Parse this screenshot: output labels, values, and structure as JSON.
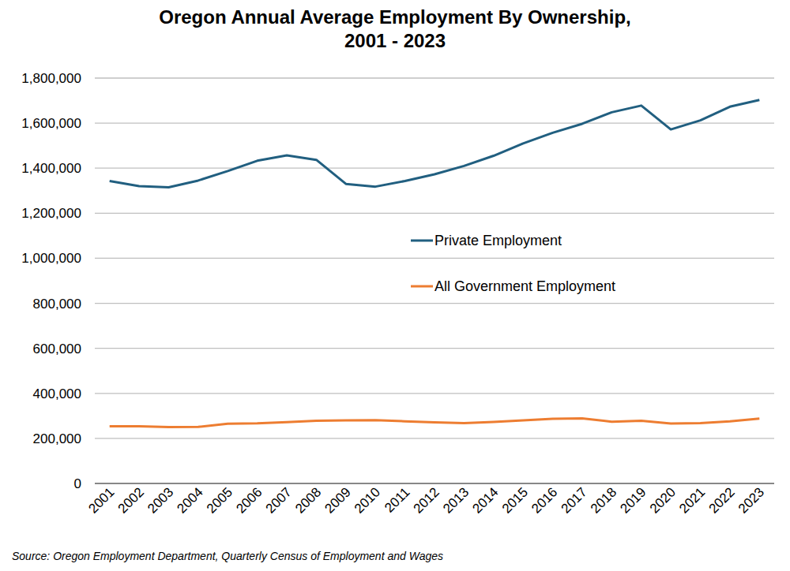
{
  "chart_data": {
    "type": "line",
    "title": "Oregon Annual Average Employment By Ownership, 2001 - 2023",
    "source": "Source: Oregon Employment Department, Quarterly Census of Employment and Wages",
    "categories": [
      "2001",
      "2002",
      "2003",
      "2004",
      "2005",
      "2006",
      "2007",
      "2008",
      "2009",
      "2010",
      "2011",
      "2012",
      "2013",
      "2014",
      "2015",
      "2016",
      "2017",
      "2018",
      "2019",
      "2020",
      "2021",
      "2022",
      "2023"
    ],
    "series": [
      {
        "name": "Private Employment",
        "color": "#215f80",
        "values": [
          1343000,
          1320000,
          1315000,
          1345000,
          1387000,
          1433000,
          1457000,
          1437000,
          1330000,
          1318000,
          1343000,
          1373000,
          1410000,
          1455000,
          1510000,
          1557000,
          1597000,
          1648000,
          1678000,
          1572000,
          1612000,
          1673000,
          1703000
        ]
      },
      {
        "name": "All Government Employment",
        "color": "#ed7d31",
        "values": [
          254000,
          254000,
          250000,
          251000,
          265000,
          267000,
          272000,
          278000,
          280000,
          281000,
          276000,
          271000,
          268000,
          273000,
          280000,
          287000,
          289000,
          274000,
          278000,
          266000,
          268000,
          276000,
          288000
        ]
      }
    ],
    "ylim": [
      0,
      1800000
    ],
    "yticks": [
      0,
      {
        "value": 200000,
        "label": "200,000"
      },
      {
        "value": 400000,
        "label": "400,000"
      },
      {
        "value": 600000,
        "label": "600,000"
      },
      {
        "value": 800000,
        "label": "800,000"
      },
      {
        "value": 1000000,
        "label": "1,000,000"
      },
      {
        "value": 1200000,
        "label": "1,200,000"
      },
      {
        "value": 1400000,
        "label": "1,400,000"
      },
      {
        "value": 1600000,
        "label": "1,600,000"
      },
      {
        "value": 1800000,
        "label": "1,800,000"
      }
    ],
    "grid": true,
    "legend": "center"
  }
}
